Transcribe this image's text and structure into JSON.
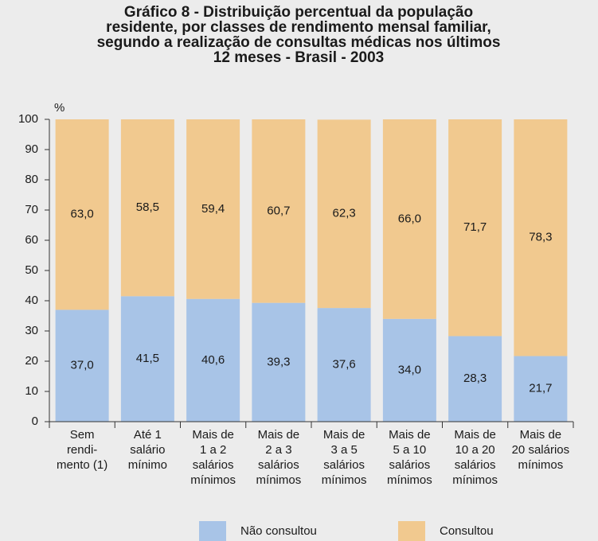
{
  "chart_data": {
    "type": "bar",
    "stacked": true,
    "title": [
      "Gráfico 8 - Distribuição percentual da população",
      "residente, por classes de rendimento mensal familiar,",
      "segundo a realização de consultas médicas nos últimos",
      "12 meses - Brasil - 2003"
    ],
    "ylabel": "%",
    "categories": [
      [
        "Sem",
        "rendi-",
        "mento (1)"
      ],
      [
        "Até 1",
        "salário",
        "mínimo"
      ],
      [
        "Mais de",
        "1 a 2",
        "salários",
        "mínimos"
      ],
      [
        "Mais de",
        "2 a 3",
        "salários",
        "mínimos"
      ],
      [
        "Mais de",
        "3 a 5",
        "salários",
        "mínimos"
      ],
      [
        "Mais de",
        "5 a 10",
        "salários",
        "mínimos"
      ],
      [
        "Mais de",
        "10 a 20",
        "salários",
        "mínimos"
      ],
      [
        "Mais de",
        "20 salários",
        "mínimos"
      ]
    ],
    "series": [
      {
        "name": "Não consultou",
        "color": "#a8c4e7",
        "values": [
          37.0,
          41.5,
          40.6,
          39.3,
          37.6,
          34.0,
          28.3,
          21.7
        ],
        "value_labels": [
          "37,0",
          "41,5",
          "40,6",
          "39,3",
          "37,6",
          "34,0",
          "28,3",
          "21,7"
        ]
      },
      {
        "name": "Consultou",
        "color": "#f1c98f",
        "values": [
          63.0,
          58.5,
          59.4,
          60.7,
          62.3,
          66.0,
          71.7,
          78.3
        ],
        "value_labels": [
          "63,0",
          "58,5",
          "59,4",
          "60,7",
          "62,3",
          "66,0",
          "71,7",
          "78,3"
        ]
      }
    ],
    "ylim": [
      0,
      100
    ],
    "yticks": [
      0,
      10,
      20,
      30,
      40,
      50,
      60,
      70,
      80,
      90,
      100
    ],
    "grid": false,
    "legend": "bottom"
  }
}
